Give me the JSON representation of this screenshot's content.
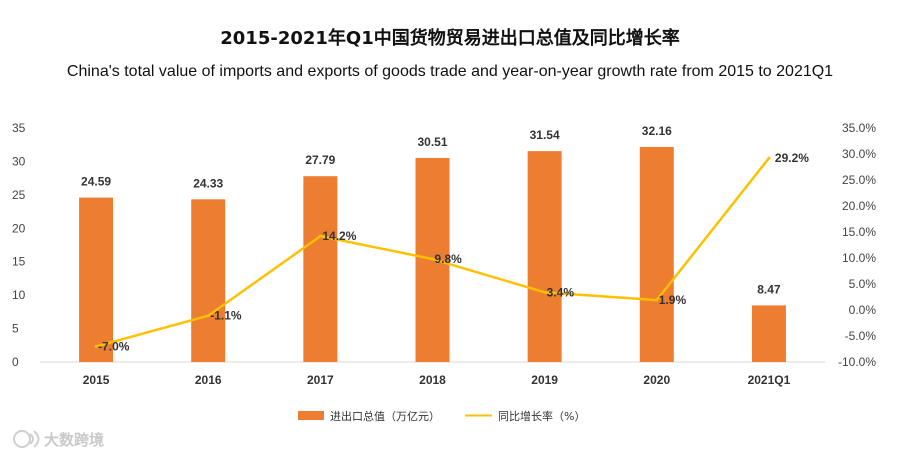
{
  "colors": {
    "bar": "#ED7D31",
    "line": "#FFC000",
    "axis": "#d9d9d9"
  },
  "watermark": "大数跨境",
  "chart_data": {
    "type": "bar",
    "title": "2015-2021年Q1中国货物贸易进出口总值及同比增长率",
    "subtitle": "China's total value of imports and exports of goods trade and year-on-year growth rate from 2015 to 2021Q1",
    "categories": [
      "2015",
      "2016",
      "2017",
      "2018",
      "2019",
      "2020",
      "2021Q1"
    ],
    "series": [
      {
        "name": "进出口总值（万亿元）",
        "type": "bar",
        "axis": "left",
        "values": [
          24.59,
          24.33,
          27.79,
          30.51,
          31.54,
          32.16,
          8.47
        ],
        "labels": [
          "24.59",
          "24.33",
          "27.79",
          "30.51",
          "31.54",
          "32.16",
          "8.47"
        ]
      },
      {
        "name": "同比增长率（%）",
        "type": "line",
        "axis": "right",
        "values": [
          -7.0,
          -1.1,
          14.2,
          9.8,
          3.4,
          1.9,
          29.2
        ],
        "labels": [
          "-7.0%",
          "-1.1%",
          "14.2%",
          "9.8%",
          "3.4%",
          "1.9%",
          "29.2%"
        ]
      }
    ],
    "y_left": {
      "min": 0,
      "max": 35,
      "ticks": [
        "0",
        "5",
        "10",
        "15",
        "20",
        "25",
        "30",
        "35"
      ]
    },
    "y_right": {
      "min": -10,
      "max": 35,
      "ticks": [
        "-10.0%",
        "-5.0%",
        "0.0%",
        "5.0%",
        "10.0%",
        "15.0%",
        "20.0%",
        "25.0%",
        "30.0%",
        "35.0%"
      ]
    },
    "grid": false,
    "legend_position": "bottom"
  }
}
